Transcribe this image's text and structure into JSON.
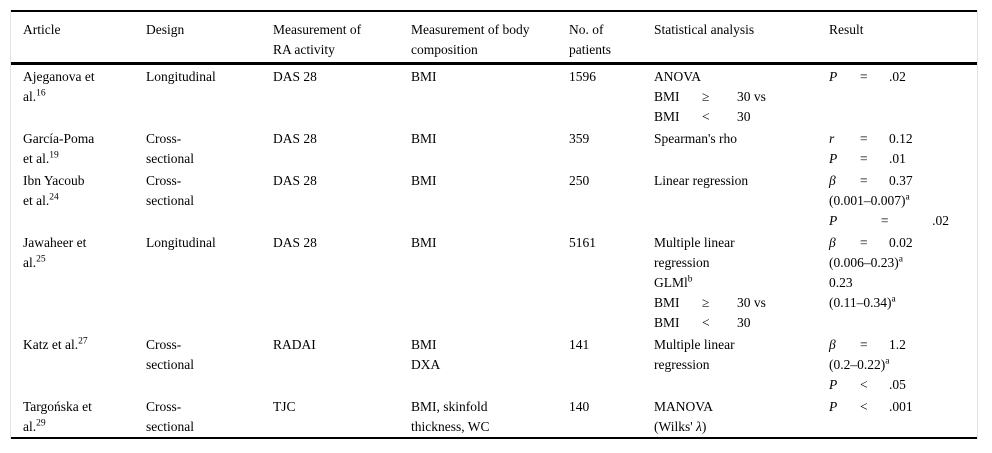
{
  "page": {
    "background": "#ffffff",
    "text_color": "#000000",
    "rule_color": "#000000"
  },
  "table": {
    "columns": [
      {
        "key": "article",
        "lines": [
          "Article"
        ]
      },
      {
        "key": "design",
        "lines": [
          "Design"
        ]
      },
      {
        "key": "ra-activity",
        "lines": [
          "Measurement of",
          "RA activity"
        ]
      },
      {
        "key": "body-composition",
        "lines": [
          "Measurement of body",
          "composition"
        ]
      },
      {
        "key": "patients",
        "lines": [
          "No. of",
          "patients"
        ]
      },
      {
        "key": "statistical-analysis",
        "lines": [
          "Statistical analysis"
        ]
      },
      {
        "key": "result",
        "lines": [
          "Result"
        ]
      }
    ],
    "rows": [
      {
        "cells": [
          {
            "lines": [
              "Ajeganova et",
              {
                "parts": [
                  {
                    "t": "al."
                  },
                  {
                    "t": "16",
                    "sup": true
                  }
                ]
              }
            ]
          },
          {
            "lines": [
              "Longitudinal"
            ]
          },
          {
            "lines": [
              "DAS 28"
            ]
          },
          {
            "lines": [
              "BMI"
            ]
          },
          {
            "lines": [
              "1596"
            ]
          },
          {
            "lines": [
              "ANOVA",
              {
                "layout": "cols",
                "parts": [
                  {
                    "t": "BMI"
                  },
                  {
                    "t": "≥"
                  },
                  {
                    "t": "30 vs"
                  }
                ]
              },
              {
                "layout": "cols",
                "parts": [
                  {
                    "t": "BMI"
                  },
                  {
                    "t": "<"
                  },
                  {
                    "t": "30"
                  }
                ]
              }
            ]
          },
          {
            "lines": [
              {
                "layout": "res",
                "parts": [
                  {
                    "t": "P",
                    "i": true
                  },
                  {
                    "t": "="
                  },
                  {
                    "t": ".02"
                  }
                ]
              }
            ]
          }
        ]
      },
      {
        "cells": [
          {
            "lines": [
              "García-Poma",
              {
                "parts": [
                  {
                    "t": "et al."
                  },
                  {
                    "t": "19",
                    "sup": true
                  }
                ]
              }
            ]
          },
          {
            "lines": [
              "Cross-",
              "sectional"
            ]
          },
          {
            "lines": [
              "DAS 28"
            ]
          },
          {
            "lines": [
              "BMI"
            ]
          },
          {
            "lines": [
              "359"
            ]
          },
          {
            "lines": [
              "Spearman's rho"
            ]
          },
          {
            "lines": [
              {
                "layout": "res",
                "parts": [
                  {
                    "t": "r",
                    "i": true
                  },
                  {
                    "t": "="
                  },
                  {
                    "t": "0.12"
                  }
                ]
              },
              {
                "layout": "res",
                "parts": [
                  {
                    "t": "P",
                    "i": true
                  },
                  {
                    "t": "="
                  },
                  {
                    "t": ".01"
                  }
                ]
              }
            ]
          }
        ]
      },
      {
        "cells": [
          {
            "lines": [
              "Ibn Yacoub",
              {
                "parts": [
                  {
                    "t": "et al."
                  },
                  {
                    "t": "24",
                    "sup": true
                  }
                ]
              }
            ]
          },
          {
            "lines": [
              "Cross-",
              "sectional"
            ]
          },
          {
            "lines": [
              "DAS 28"
            ]
          },
          {
            "lines": [
              "BMI"
            ]
          },
          {
            "lines": [
              "250"
            ]
          },
          {
            "lines": [
              "Linear regression"
            ]
          },
          {
            "lines": [
              {
                "layout": "res",
                "parts": [
                  {
                    "t": "β",
                    "i": true
                  },
                  {
                    "t": "="
                  },
                  {
                    "t": "0.37"
                  }
                ]
              },
              {
                "parts": [
                  {
                    "t": "(0.001–0.007)"
                  },
                  {
                    "t": "a",
                    "sup": true
                  }
                ]
              },
              {
                "layout": "res",
                "wide": true,
                "parts": [
                  {
                    "t": "P",
                    "i": true
                  },
                  {
                    "t": "="
                  },
                  {
                    "t": ".02"
                  }
                ]
              }
            ]
          }
        ]
      },
      {
        "cells": [
          {
            "lines": [
              "Jawaheer et",
              {
                "parts": [
                  {
                    "t": "al."
                  },
                  {
                    "t": "25",
                    "sup": true
                  }
                ]
              }
            ]
          },
          {
            "lines": [
              "Longitudinal"
            ]
          },
          {
            "lines": [
              "DAS 28"
            ]
          },
          {
            "lines": [
              "BMI"
            ]
          },
          {
            "lines": [
              "5161"
            ]
          },
          {
            "lines": [
              "Multiple linear",
              "regression",
              {
                "parts": [
                  {
                    "t": "GLMl"
                  },
                  {
                    "t": "b",
                    "sup": true
                  }
                ]
              },
              {
                "layout": "cols",
                "parts": [
                  {
                    "t": "BMI"
                  },
                  {
                    "t": "≥"
                  },
                  {
                    "t": "30 vs"
                  }
                ]
              },
              {
                "layout": "cols",
                "parts": [
                  {
                    "t": "BMI"
                  },
                  {
                    "t": "<"
                  },
                  {
                    "t": "30"
                  }
                ]
              }
            ]
          },
          {
            "lines": [
              {
                "layout": "res",
                "parts": [
                  {
                    "t": "β",
                    "i": true
                  },
                  {
                    "t": "="
                  },
                  {
                    "t": "0.02"
                  }
                ]
              },
              {
                "parts": [
                  {
                    "t": "(0.006–0.23)"
                  },
                  {
                    "t": "a",
                    "sup": true
                  }
                ]
              },
              "0.23",
              {
                "parts": [
                  {
                    "t": "(0.11–0.34)"
                  },
                  {
                    "t": "a",
                    "sup": true
                  }
                ]
              }
            ]
          }
        ]
      },
      {
        "cells": [
          {
            "lines": [
              {
                "parts": [
                  {
                    "t": "Katz et al."
                  },
                  {
                    "t": "27",
                    "sup": true
                  }
                ]
              }
            ]
          },
          {
            "lines": [
              "Cross-",
              "sectional"
            ]
          },
          {
            "lines": [
              "RADAI"
            ]
          },
          {
            "lines": [
              "BMI",
              "DXA"
            ]
          },
          {
            "lines": [
              "141"
            ]
          },
          {
            "lines": [
              "Multiple linear",
              "regression"
            ]
          },
          {
            "lines": [
              {
                "layout": "res",
                "parts": [
                  {
                    "t": "β",
                    "i": true
                  },
                  {
                    "t": "="
                  },
                  {
                    "t": "1.2"
                  }
                ]
              },
              {
                "parts": [
                  {
                    "t": "(0.2–0.22)"
                  },
                  {
                    "t": "a",
                    "sup": true
                  }
                ]
              },
              {
                "layout": "res",
                "parts": [
                  {
                    "t": "P",
                    "i": true
                  },
                  {
                    "t": "<"
                  },
                  {
                    "t": ".05"
                  }
                ]
              }
            ]
          }
        ]
      },
      {
        "cells": [
          {
            "lines": [
              "Targońska et",
              {
                "parts": [
                  {
                    "t": "al."
                  },
                  {
                    "t": "29",
                    "sup": true
                  }
                ]
              }
            ]
          },
          {
            "lines": [
              "Cross-",
              "sectional"
            ]
          },
          {
            "lines": [
              "TJC"
            ]
          },
          {
            "lines": [
              "BMI, skinfold",
              "thickness, WC"
            ]
          },
          {
            "lines": [
              "140"
            ]
          },
          {
            "lines": [
              "MANOVA",
              {
                "parts": [
                  {
                    "t": "(Wilks' "
                  },
                  {
                    "t": "λ",
                    "i": true
                  },
                  {
                    "t": ")"
                  }
                ]
              }
            ]
          },
          {
            "lines": [
              {
                "layout": "res",
                "parts": [
                  {
                    "t": "P",
                    "i": true
                  },
                  {
                    "t": "<"
                  },
                  {
                    "t": ".001"
                  }
                ]
              }
            ]
          }
        ]
      }
    ]
  }
}
